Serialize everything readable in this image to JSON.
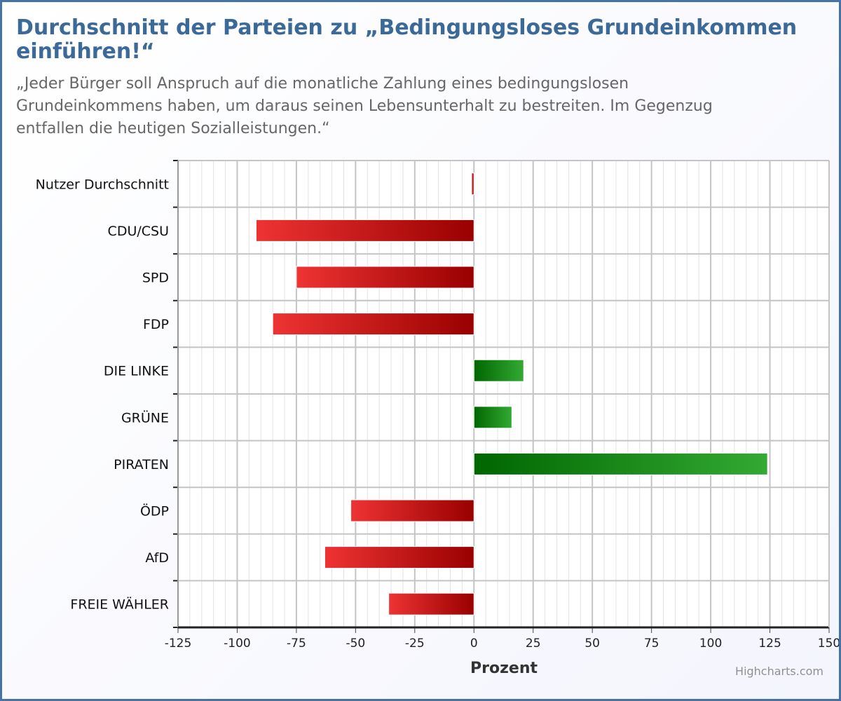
{
  "colors": {
    "title": "#3b6998",
    "frame": "#4572a7",
    "negative_light": "#ee3333",
    "negative_dark": "#990000",
    "positive_light": "#33aa33",
    "positive_dark": "#006600"
  },
  "chart_data": {
    "type": "bar",
    "orientation": "horizontal",
    "title": "Durchschnitt der Parteien zu „Bedingungsloses Grundeinkommen einführen!“",
    "subtitle": "„Jeder Bürger soll Anspruch auf die monatliche Zahlung eines bedingungslosen Grundeinkommens haben, um daraus seinen Lebensunterhalt zu bestreiten. Im Gegenzug entfallen die heutigen Sozialleistungen.“",
    "xlabel": "Prozent",
    "categories": [
      "Nutzer Durchschnitt",
      "CDU/CSU",
      "SPD",
      "FDP",
      "DIE LINKE",
      "GRÜNE",
      "PIRATEN",
      "ÖDP",
      "AfD",
      "FREIE WÄHLER"
    ],
    "values": [
      -1,
      -92,
      -75,
      -85,
      21,
      16,
      124,
      -52,
      -63,
      -36
    ],
    "ticks": [
      "-125",
      "-100",
      "-75",
      "-50",
      "-25",
      "0",
      "25",
      "50",
      "75",
      "100",
      "125",
      "150"
    ],
    "xlim": [
      -125,
      150
    ],
    "grid": true,
    "legend": "none"
  },
  "credits": "Highcharts.com"
}
